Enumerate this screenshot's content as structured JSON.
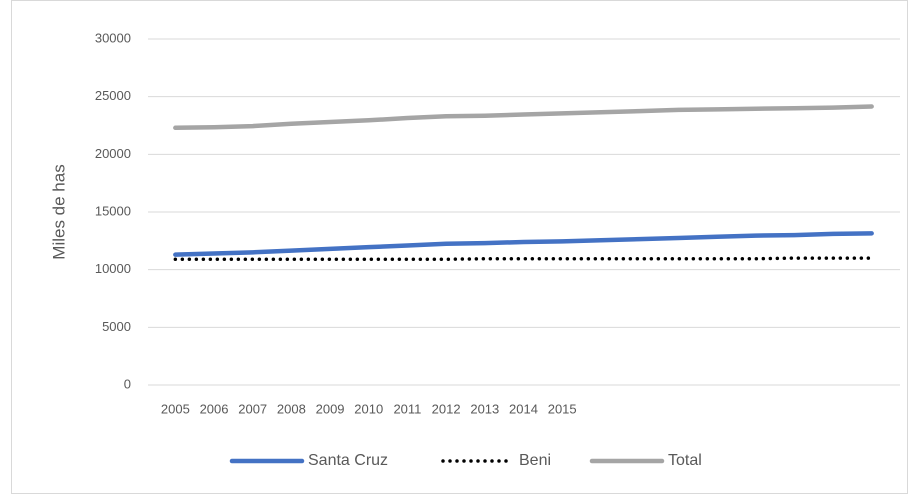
{
  "chart_data": {
    "type": "line",
    "y_label": "Miles de has",
    "categories": [
      "2005",
      "2006",
      "2007",
      "2008",
      "2009",
      "2010",
      "2011",
      "2012",
      "2013",
      "2014",
      "2015",
      null,
      null,
      null,
      null,
      null,
      null,
      null,
      null
    ],
    "series": [
      {
        "name": "Santa Cruz",
        "color": "#4472c4",
        "style": "solid",
        "values": [
          11300,
          11400,
          11500,
          11650,
          11800,
          11950,
          12100,
          12250,
          12300,
          12400,
          12450,
          12550,
          12650,
          12750,
          12850,
          12950,
          13000,
          13100,
          13150
        ]
      },
      {
        "name": "Beni",
        "color": "#000000",
        "style": "dotted",
        "values": [
          10900,
          10900,
          10900,
          10900,
          10900,
          10900,
          10900,
          10900,
          10950,
          10950,
          10950,
          10950,
          10950,
          10950,
          10950,
          10950,
          11000,
          11000,
          11000
        ]
      },
      {
        "name": "Total",
        "color": "#a5a5a5",
        "style": "solid",
        "values": [
          22300,
          22350,
          22450,
          22650,
          22800,
          22950,
          23150,
          23300,
          23350,
          23450,
          23550,
          23650,
          23750,
          23850,
          23900,
          23950,
          24000,
          24050,
          24150
        ]
      }
    ],
    "ylim": [
      0,
      30000
    ],
    "yticks": [
      0,
      5000,
      10000,
      15000,
      20000,
      25000,
      30000
    ],
    "grid": true,
    "legend": "bottom"
  }
}
